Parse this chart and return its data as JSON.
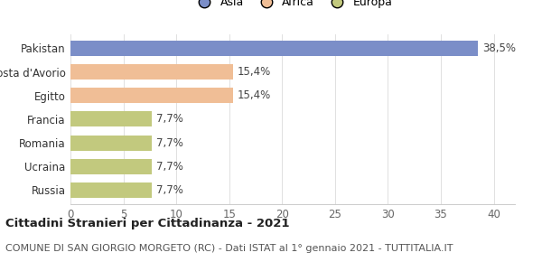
{
  "categories": [
    "Pakistan",
    "Costa d'Avorio",
    "Egitto",
    "Francia",
    "Romania",
    "Ucraina",
    "Russia"
  ],
  "values": [
    38.5,
    15.4,
    15.4,
    7.7,
    7.7,
    7.7,
    7.7
  ],
  "labels": [
    "38,5%",
    "15,4%",
    "15,4%",
    "7,7%",
    "7,7%",
    "7,7%",
    "7,7%"
  ],
  "colors": [
    "#7b8ec8",
    "#f0be96",
    "#f0be96",
    "#c2c97e",
    "#c2c97e",
    "#c2c97e",
    "#c2c97e"
  ],
  "legend": [
    {
      "label": "Asia",
      "color": "#7b8ec8"
    },
    {
      "label": "Africa",
      "color": "#f0be96"
    },
    {
      "label": "Europa",
      "color": "#c2c97e"
    }
  ],
  "xlim": [
    0,
    42
  ],
  "xticks": [
    0,
    5,
    10,
    15,
    20,
    25,
    30,
    35,
    40
  ],
  "title_bold": "Cittadini Stranieri per Cittadinanza - 2021",
  "subtitle": "COMUNE DI SAN GIORGIO MORGETO (RC) - Dati ISTAT al 1° gennaio 2021 - TUTTITALIA.IT",
  "background_color": "#ffffff",
  "bar_height": 0.65,
  "label_fontsize": 8.5,
  "tick_fontsize": 8.5,
  "title_fontsize": 9.5,
  "subtitle_fontsize": 8.0
}
